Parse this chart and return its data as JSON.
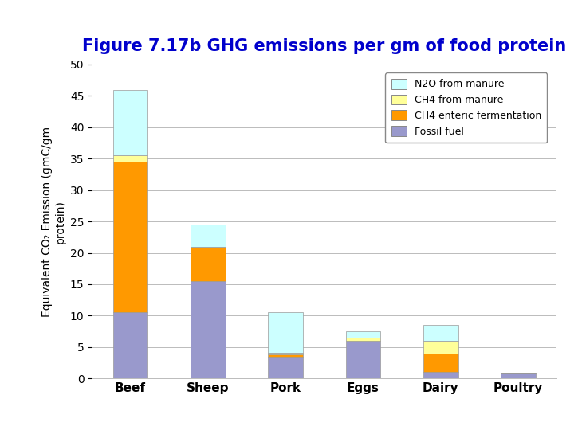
{
  "title": "Figure 7.17b GHG emissions per gm of food protein",
  "categories": [
    "Beef",
    "Sheep",
    "Pork",
    "Eggs",
    "Dairy",
    "Poultry"
  ],
  "fossil_fuel": [
    10.5,
    15.5,
    3.5,
    6.0,
    1.0,
    0.8
  ],
  "ch4_enteric": [
    24.0,
    5.5,
    0.3,
    0.0,
    3.0,
    0.0
  ],
  "ch4_manure": [
    1.0,
    0.0,
    0.3,
    0.5,
    2.0,
    0.0
  ],
  "n2o_manure": [
    10.5,
    3.5,
    6.5,
    1.0,
    2.5,
    0.0
  ],
  "color_fossil_fuel": "#9999cc",
  "color_ch4_enteric": "#ff9900",
  "color_ch4_manure": "#ffff99",
  "color_n2o_manure": "#ccffff",
  "ylabel_line1": "Equivalent CO",
  "ylabel_line2": "2",
  "ylabel_line3": " Emission (gmC/gm\nprotein)",
  "ylim": [
    0,
    50
  ],
  "yticks": [
    0,
    5,
    10,
    15,
    20,
    25,
    30,
    35,
    40,
    45,
    50
  ],
  "title_color": "#0000cc",
  "title_fontsize": 15,
  "legend_labels": [
    "N2O from manure",
    "CH4 from manure",
    "CH4 enteric fermentation",
    "Fossil fuel"
  ],
  "legend_colors": [
    "#ccffff",
    "#ffff99",
    "#ff9900",
    "#9999cc"
  ],
  "background_color": "#ffffff",
  "bar_width": 0.45,
  "bar_edge_color": "#999999",
  "bar_edge_width": 0.5
}
